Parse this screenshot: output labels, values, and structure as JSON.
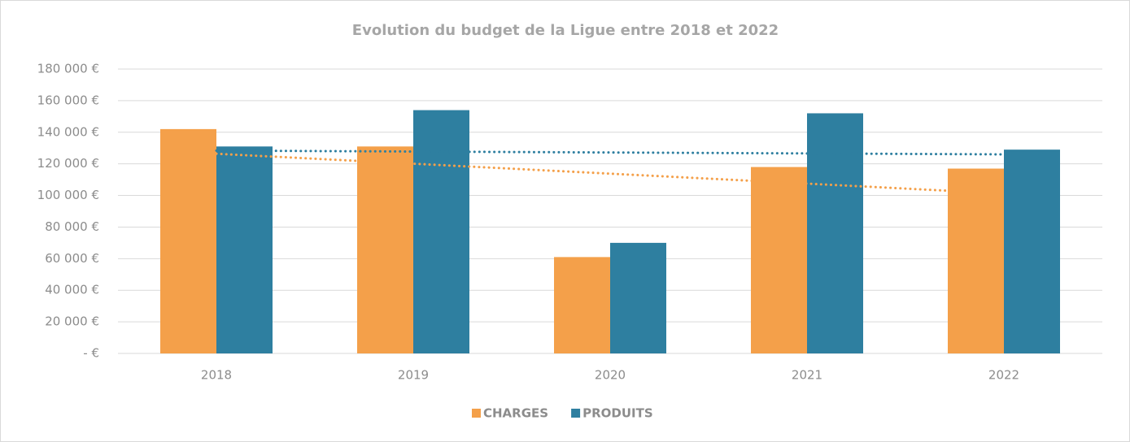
{
  "chart_data": {
    "type": "bar",
    "title": "Evolution du budget de la Ligue entre 2018 et 2022",
    "categories": [
      "2018",
      "2019",
      "2020",
      "2021",
      "2022"
    ],
    "series": [
      {
        "name": "CHARGES",
        "color": "#f4a04a",
        "values": [
          142000,
          131000,
          61000,
          118000,
          117000
        ]
      },
      {
        "name": "PRODUITS",
        "color": "#2e7fa0",
        "values": [
          131000,
          154000,
          70000,
          152000,
          129000
        ]
      }
    ],
    "trendline": "linear",
    "ylim": [
      0,
      180000
    ],
    "yticks": [
      {
        "value": 0,
        "label": "-  €"
      },
      {
        "value": 20000,
        "label": "20 000 €"
      },
      {
        "value": 40000,
        "label": "40 000 €"
      },
      {
        "value": 60000,
        "label": "60 000 €"
      },
      {
        "value": 80000,
        "label": "80 000 €"
      },
      {
        "value": 100000,
        "label": "100 000 €"
      },
      {
        "value": 120000,
        "label": "120 000 €"
      },
      {
        "value": 140000,
        "label": "140 000 €"
      },
      {
        "value": 160000,
        "label": "160 000 €"
      },
      {
        "value": 180000,
        "label": "180 000 €"
      }
    ],
    "grid": true,
    "legend": "bottom"
  }
}
